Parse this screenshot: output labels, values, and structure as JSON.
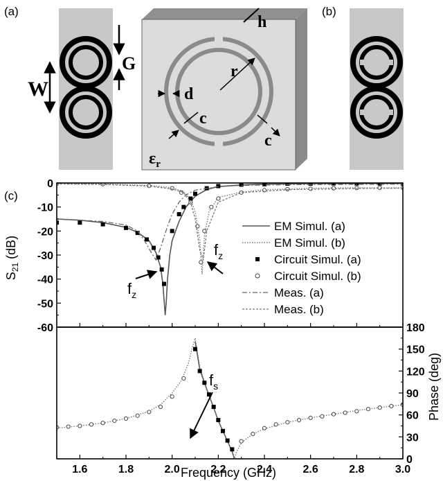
{
  "panel_labels": {
    "a": "(a)",
    "b": "(b)",
    "c": "(c)"
  },
  "dimension_labels": {
    "h": "h",
    "G": "G",
    "W": "W",
    "r": "r",
    "d": "d",
    "c1": "c",
    "c2": "c",
    "eps_main": "ε",
    "eps_sub": "r"
  },
  "annotations": {
    "fz1_main": "f",
    "fz1_sub": "z",
    "fz2_main": "f",
    "fz2_sub": "z",
    "fs_main": "f",
    "fs_sub": "s"
  },
  "axes": {
    "top_ylabel_main": "S",
    "top_ylabel_sub": "21",
    "top_ylabel_unit": " (dB)",
    "bottom_ylabel": "Phase (deg)",
    "xlabel": "Frequency (GHz)"
  },
  "chart_data": [
    {
      "type": "line",
      "ylabel": "S21 (dB)",
      "xlim": [
        1.5,
        3.0
      ],
      "ylim": [
        -60,
        0
      ],
      "xticks": [
        "1.6",
        "1.8",
        "2.0",
        "2.2",
        "2.4",
        "2.6",
        "2.8",
        "3.0"
      ],
      "yticks": [
        "0",
        "-10",
        "-20",
        "-30",
        "-40",
        "-50",
        "-60"
      ],
      "legend": [
        "EM Simul. (a)",
        "EM Simul. (b)",
        "Circuit Simul. (a)",
        "Circuit Simul. (b)",
        "Meas. (a)",
        "Meas. (b)"
      ],
      "legend_position": "right",
      "series": [
        {
          "name": "EM Simul. (a)",
          "style": "solid",
          "x": [
            1.5,
            1.6,
            1.7,
            1.8,
            1.85,
            1.9,
            1.93,
            1.95,
            1.96,
            1.97,
            1.975,
            1.98,
            1.99,
            2.0,
            2.03,
            2.06,
            2.1,
            2.15,
            2.2,
            2.3,
            2.4,
            2.6,
            2.8,
            3.0
          ],
          "y": [
            -15,
            -15.5,
            -16.5,
            -18.5,
            -20.5,
            -24,
            -29,
            -35,
            -42,
            -55,
            -49,
            -40,
            -30,
            -24,
            -16,
            -10,
            -5.5,
            -2.7,
            -1.5,
            -0.8,
            -0.5,
            -0.3,
            -0.2,
            -0.2
          ]
        },
        {
          "name": "EM Simul. (b)",
          "style": "dotted",
          "x": [
            1.5,
            1.7,
            1.9,
            2.0,
            2.05,
            2.08,
            2.1,
            2.12,
            2.13,
            2.14,
            2.16,
            2.2,
            2.3,
            2.4,
            2.6,
            2.8,
            3.0
          ],
          "y": [
            -0.2,
            -0.4,
            -1,
            -2,
            -3.5,
            -7,
            -12,
            -24,
            -38,
            -22,
            -12,
            -6,
            -3.8,
            -2.8,
            -2.2,
            -2,
            -2
          ]
        },
        {
          "name": "Circuit Simul. (a)",
          "style": "square-markers",
          "x": [
            1.5,
            1.6,
            1.7,
            1.8,
            1.85,
            1.89,
            1.92,
            1.94,
            1.955,
            1.965,
            2.0,
            2.03,
            2.05,
            2.08,
            2.1,
            2.15,
            2.2,
            2.3,
            2.4,
            2.5,
            2.6,
            2.7,
            2.8,
            2.9,
            3.0
          ],
          "y": [
            -16.5,
            -16.5,
            -17.2,
            -18.7,
            -20.8,
            -23.5,
            -27,
            -31,
            -36,
            -42,
            -20,
            -13,
            -10,
            -6.5,
            -4.5,
            -2.2,
            -1.3,
            -0.7,
            -0.5,
            -0.3,
            -0.3,
            -0.2,
            -0.2,
            -0.2,
            -0.2
          ]
        },
        {
          "name": "Circuit Simul. (b)",
          "style": "circle-markers",
          "x": [
            1.5,
            1.7,
            1.9,
            2.0,
            2.04,
            2.08,
            2.11,
            2.125,
            2.14,
            2.17,
            2.2,
            2.3,
            2.4,
            2.5,
            2.6,
            2.7,
            2.8,
            2.9,
            3.0
          ],
          "y": [
            -0.3,
            -0.5,
            -1.2,
            -2.2,
            -4,
            -8,
            -18,
            -33,
            -20,
            -10,
            -6.5,
            -4,
            -3,
            -2.6,
            -2.4,
            -2.2,
            -2.1,
            -2,
            -2
          ]
        },
        {
          "name": "Meas. (a)",
          "style": "dash-dot",
          "x": [
            1.5,
            1.7,
            1.8,
            1.85,
            1.88,
            1.91,
            1.93,
            1.95,
            1.98,
            2.0,
            2.03,
            2.06,
            2.1,
            2.2,
            2.3,
            2.5,
            3.0
          ],
          "y": [
            -15,
            -16,
            -17.5,
            -20,
            -24,
            -29,
            -32,
            -27,
            -18,
            -13,
            -8,
            -5,
            -3,
            -1.5,
            -1,
            -0.7,
            -0.5
          ]
        },
        {
          "name": "Meas. (b)",
          "style": "dashed",
          "x": [
            1.5,
            1.7,
            1.9,
            2.0,
            2.05,
            2.08,
            2.1,
            2.12,
            2.135,
            2.15,
            2.2,
            2.3,
            2.5,
            2.8,
            3.0
          ],
          "y": [
            -0.4,
            -0.6,
            -1.3,
            -2.5,
            -4,
            -8,
            -15,
            -28,
            -32,
            -20,
            -8,
            -4,
            -2.8,
            -2.3,
            -2.2
          ]
        }
      ]
    },
    {
      "type": "line",
      "ylabel": "Phase (deg)",
      "xlabel": "Frequency (GHz)",
      "xlim": [
        1.5,
        3.0
      ],
      "ylim": [
        0,
        180
      ],
      "xticks": [
        "1.6",
        "1.8",
        "2.0",
        "2.2",
        "2.4",
        "2.6",
        "2.8",
        "3.0"
      ],
      "yticks": [
        "0",
        "30",
        "60",
        "90",
        "120",
        "150",
        "180"
      ],
      "series": [
        {
          "name": "EM Simul. (a)",
          "style": "solid",
          "x": [
            2.1,
            2.12,
            2.15,
            2.18,
            2.2,
            2.22,
            2.24,
            2.26,
            2.27
          ],
          "y": [
            160,
            122,
            95,
            70,
            52,
            38,
            24,
            10,
            0
          ]
        },
        {
          "name": "EM Simul. (b)",
          "style": "dotted",
          "x": [
            1.5,
            1.6,
            1.7,
            1.8,
            1.9,
            1.95,
            2.0,
            2.04,
            2.07,
            2.09,
            2.1,
            2.12,
            2.15,
            2.18,
            2.2,
            2.22,
            2.24,
            2.26,
            2.27,
            2.28,
            2.3,
            2.35,
            2.4,
            2.5,
            2.6,
            2.7,
            2.8,
            2.9,
            3.0
          ],
          "y": [
            42,
            45,
            49,
            55,
            65,
            74,
            90,
            107,
            130,
            155,
            165,
            125,
            95,
            70,
            52,
            38,
            24,
            10,
            0,
            10,
            22,
            34,
            41,
            50,
            56,
            61,
            66,
            70,
            74
          ]
        },
        {
          "name": "Circuit Simul. (a)",
          "style": "square-markers",
          "x": [
            2.1,
            2.12,
            2.14,
            2.16,
            2.18,
            2.2,
            2.22,
            2.24,
            2.26
          ],
          "y": [
            150,
            120,
            104,
            88,
            71,
            53,
            38,
            25,
            13
          ]
        },
        {
          "name": "Circuit Simul. (b)",
          "style": "circle-markers",
          "x": [
            1.5,
            1.55,
            1.6,
            1.65,
            1.7,
            1.75,
            1.8,
            1.85,
            1.9,
            1.95,
            2.0,
            2.05,
            2.3,
            2.35,
            2.4,
            2.45,
            2.5,
            2.55,
            2.6,
            2.65,
            2.7,
            2.75,
            2.8,
            2.85,
            2.9,
            2.95,
            3.0
          ],
          "y": [
            43,
            44,
            45,
            47,
            49,
            52,
            55,
            59,
            64,
            71,
            85,
            110,
            24,
            34,
            42,
            47,
            50,
            53,
            56,
            58,
            61,
            63,
            65,
            68,
            70,
            72,
            74
          ]
        }
      ]
    }
  ]
}
